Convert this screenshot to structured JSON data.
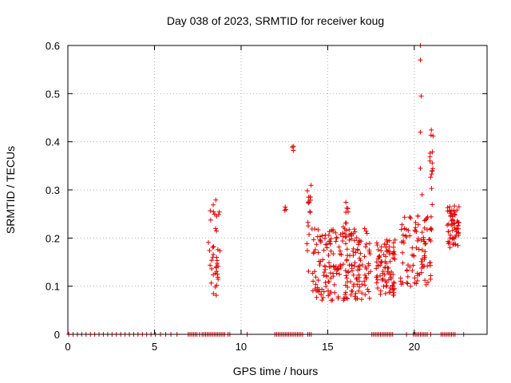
{
  "chart_data": {
    "type": "scatter",
    "title": "Day 038 of 2023, SRMTID for receiver koug",
    "xlabel": "GPS time / hours",
    "ylabel": "SRMTID / TECUs",
    "xlim": [
      0,
      24.2
    ],
    "ylim": [
      0,
      0.6
    ],
    "xticks": [
      "0",
      "5",
      "10",
      "15",
      "20"
    ],
    "yticks": [
      "0",
      "0.1",
      "0.2",
      "0.3",
      "0.4",
      "0.5",
      "0.6"
    ],
    "grid": true,
    "marker": "plus",
    "color": "#e00000",
    "zero_points_x": [
      0.05,
      0.3,
      0.55,
      0.8,
      1.05,
      1.3,
      1.55,
      1.8,
      2.05,
      2.3,
      2.55,
      2.8,
      3.05,
      3.3,
      3.55,
      3.8,
      4.05,
      4.3,
      4.55,
      4.8,
      5.05,
      5.35,
      5.65,
      5.95,
      6.3,
      6.95,
      7.05,
      7.15,
      7.25,
      7.35,
      7.45,
      7.6,
      7.75,
      7.85,
      7.95,
      8.05,
      8.15,
      8.25,
      8.35,
      8.45,
      8.55,
      8.65,
      8.75,
      8.85,
      8.95,
      9.05,
      9.25,
      9.35,
      10.35,
      11.95,
      12.05,
      12.15,
      12.25,
      12.35,
      12.45,
      12.55,
      12.65,
      12.75,
      12.85,
      12.95,
      13.05,
      13.15,
      13.25,
      13.35,
      13.45,
      13.55,
      13.85,
      13.95,
      14.05,
      17.55,
      17.65,
      17.75,
      17.85,
      17.95,
      18.05,
      18.15,
      18.25,
      18.35,
      18.45,
      18.55,
      18.65,
      18.75,
      19.55,
      19.95,
      20.05,
      20.15,
      20.25,
      20.35,
      20.45,
      20.55,
      20.65,
      20.75,
      20.95,
      21.55,
      21.65,
      21.75,
      21.85,
      21.95,
      22.05,
      22.15,
      22.25,
      22.35,
      22.85
    ],
    "clusters": [
      {
        "x": [
          8.1,
          8.8
        ],
        "y": [
          0.08,
          0.28
        ],
        "n": 40
      },
      {
        "x": [
          12.5,
          12.6
        ],
        "y": [
          0.25,
          0.265
        ],
        "n": 3
      },
      {
        "x": [
          12.95,
          13.05
        ],
        "y": [
          0.37,
          0.4
        ],
        "n": 3
      },
      {
        "x": [
          13.8,
          14.1
        ],
        "y": [
          0.13,
          0.31
        ],
        "n": 18
      },
      {
        "x": [
          14.1,
          17.5
        ],
        "y": [
          0.07,
          0.22
        ],
        "n": 220
      },
      {
        "x": [
          15.9,
          16.2
        ],
        "y": [
          0.2,
          0.275
        ],
        "n": 10
      },
      {
        "x": [
          17.8,
          18.9
        ],
        "y": [
          0.08,
          0.2
        ],
        "n": 90
      },
      {
        "x": [
          19.2,
          20.0
        ],
        "y": [
          0.1,
          0.26
        ],
        "n": 35
      },
      {
        "x": [
          20.0,
          21.0
        ],
        "y": [
          0.1,
          0.25
        ],
        "n": 60
      },
      {
        "x": [
          20.9,
          21.1
        ],
        "y": [
          0.26,
          0.44
        ],
        "n": 15
      },
      {
        "x": [
          21.9,
          22.6
        ],
        "y": [
          0.18,
          0.27
        ],
        "n": 60
      }
    ],
    "outliers": [
      {
        "x": 20.35,
        "y": 0.6
      },
      {
        "x": 20.35,
        "y": 0.57
      },
      {
        "x": 20.4,
        "y": 0.495
      },
      {
        "x": 20.35,
        "y": 0.42
      },
      {
        "x": 20.35,
        "y": 0.345
      },
      {
        "x": 20.45,
        "y": 0.29
      }
    ]
  }
}
